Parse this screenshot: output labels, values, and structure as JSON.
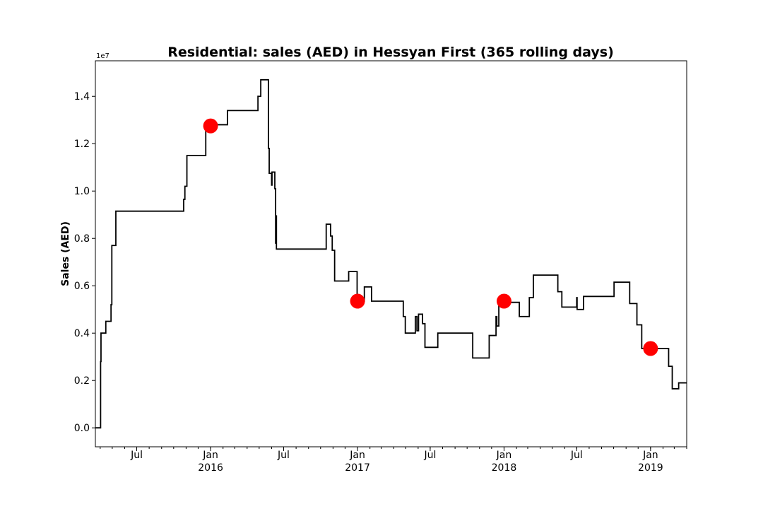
{
  "chart_data": {
    "type": "line",
    "title": "Residential: sales (AED) in Hessyan First (365 rolling days)",
    "ylabel": "Sales (AED)",
    "xlabel": "",
    "y_offset_label": "1e7",
    "ylim": [
      -0.08,
      1.55
    ],
    "xlim": [
      "2015-03-20",
      "2019-04-01"
    ],
    "grid": false,
    "yticks": [
      {
        "value": 0.0,
        "label": "0.0"
      },
      {
        "value": 0.2,
        "label": "0.2"
      },
      {
        "value": 0.4,
        "label": "0.4"
      },
      {
        "value": 0.6,
        "label": "0.6"
      },
      {
        "value": 0.8,
        "label": "0.8"
      },
      {
        "value": 1.0,
        "label": "1.0"
      },
      {
        "value": 1.2,
        "label": "1.2"
      },
      {
        "value": 1.4,
        "label": "1.4"
      }
    ],
    "xticks": [
      {
        "date": "2015-07-01",
        "label": "Jul",
        "sublabel": ""
      },
      {
        "date": "2016-01-01",
        "label": "Jan",
        "sublabel": "2016"
      },
      {
        "date": "2016-07-01",
        "label": "Jul",
        "sublabel": ""
      },
      {
        "date": "2017-01-01",
        "label": "Jan",
        "sublabel": "2017"
      },
      {
        "date": "2017-07-01",
        "label": "Jul",
        "sublabel": ""
      },
      {
        "date": "2018-01-01",
        "label": "Jan",
        "sublabel": "2018"
      },
      {
        "date": "2018-07-01",
        "label": "Jul",
        "sublabel": ""
      },
      {
        "date": "2019-01-01",
        "label": "Jan",
        "sublabel": "2019"
      }
    ],
    "series": [
      {
        "color": "#000000",
        "step": true,
        "points": [
          [
            "2015-03-20",
            0.0
          ],
          [
            "2015-04-01",
            0.0
          ],
          [
            "2015-04-02",
            0.28
          ],
          [
            "2015-04-03",
            0.4
          ],
          [
            "2015-04-15",
            0.45
          ],
          [
            "2015-04-28",
            0.52
          ],
          [
            "2015-04-30",
            0.77
          ],
          [
            "2015-05-10",
            0.915
          ],
          [
            "2015-10-26",
            0.965
          ],
          [
            "2015-10-29",
            1.02
          ],
          [
            "2015-11-03",
            1.15
          ],
          [
            "2015-12-20",
            1.28
          ],
          [
            "2016-02-12",
            1.34
          ],
          [
            "2016-04-28",
            1.4
          ],
          [
            "2016-05-05",
            1.47
          ],
          [
            "2016-05-24",
            1.18
          ],
          [
            "2016-05-26",
            1.075
          ],
          [
            "2016-06-01",
            1.025
          ],
          [
            "2016-06-02",
            1.08
          ],
          [
            "2016-06-09",
            1.01
          ],
          [
            "2016-06-11",
            0.78
          ],
          [
            "2016-06-12",
            0.895
          ],
          [
            "2016-06-13",
            0.755
          ],
          [
            "2016-10-15",
            0.86
          ],
          [
            "2016-10-26",
            0.81
          ],
          [
            "2016-10-30",
            0.75
          ],
          [
            "2016-11-05",
            0.62
          ],
          [
            "2016-12-10",
            0.66
          ],
          [
            "2016-12-31",
            0.535
          ],
          [
            "2017-01-10",
            0.535
          ],
          [
            "2017-01-18",
            0.595
          ],
          [
            "2017-02-05",
            0.535
          ],
          [
            "2017-04-25",
            0.47
          ],
          [
            "2017-04-30",
            0.4
          ],
          [
            "2017-05-25",
            0.47
          ],
          [
            "2017-05-29",
            0.41
          ],
          [
            "2017-06-02",
            0.48
          ],
          [
            "2017-06-12",
            0.44
          ],
          [
            "2017-06-18",
            0.34
          ],
          [
            "2017-07-20",
            0.4
          ],
          [
            "2017-10-15",
            0.295
          ],
          [
            "2017-11-25",
            0.39
          ],
          [
            "2017-12-12",
            0.47
          ],
          [
            "2017-12-14",
            0.43
          ],
          [
            "2017-12-19",
            0.53
          ],
          [
            "2018-02-08",
            0.47
          ],
          [
            "2018-03-05",
            0.55
          ],
          [
            "2018-03-15",
            0.645
          ],
          [
            "2018-05-15",
            0.575
          ],
          [
            "2018-05-25",
            0.51
          ],
          [
            "2018-07-01",
            0.55
          ],
          [
            "2018-07-02",
            0.5
          ],
          [
            "2018-07-18",
            0.555
          ],
          [
            "2018-10-02",
            0.615
          ],
          [
            "2018-11-10",
            0.525
          ],
          [
            "2018-11-28",
            0.435
          ],
          [
            "2018-12-10",
            0.335
          ],
          [
            "2019-02-15",
            0.26
          ],
          [
            "2019-02-24",
            0.165
          ],
          [
            "2019-03-12",
            0.19
          ],
          [
            "2019-04-01",
            0.19
          ]
        ]
      }
    ],
    "markers": [
      {
        "date": "2016-01-01",
        "value": 1.275,
        "color": "#ff0000"
      },
      {
        "date": "2017-01-01",
        "value": 0.535,
        "color": "#ff0000"
      },
      {
        "date": "2018-01-01",
        "value": 0.535,
        "color": "#ff0000"
      },
      {
        "date": "2019-01-01",
        "value": 0.335,
        "color": "#ff0000"
      }
    ]
  }
}
